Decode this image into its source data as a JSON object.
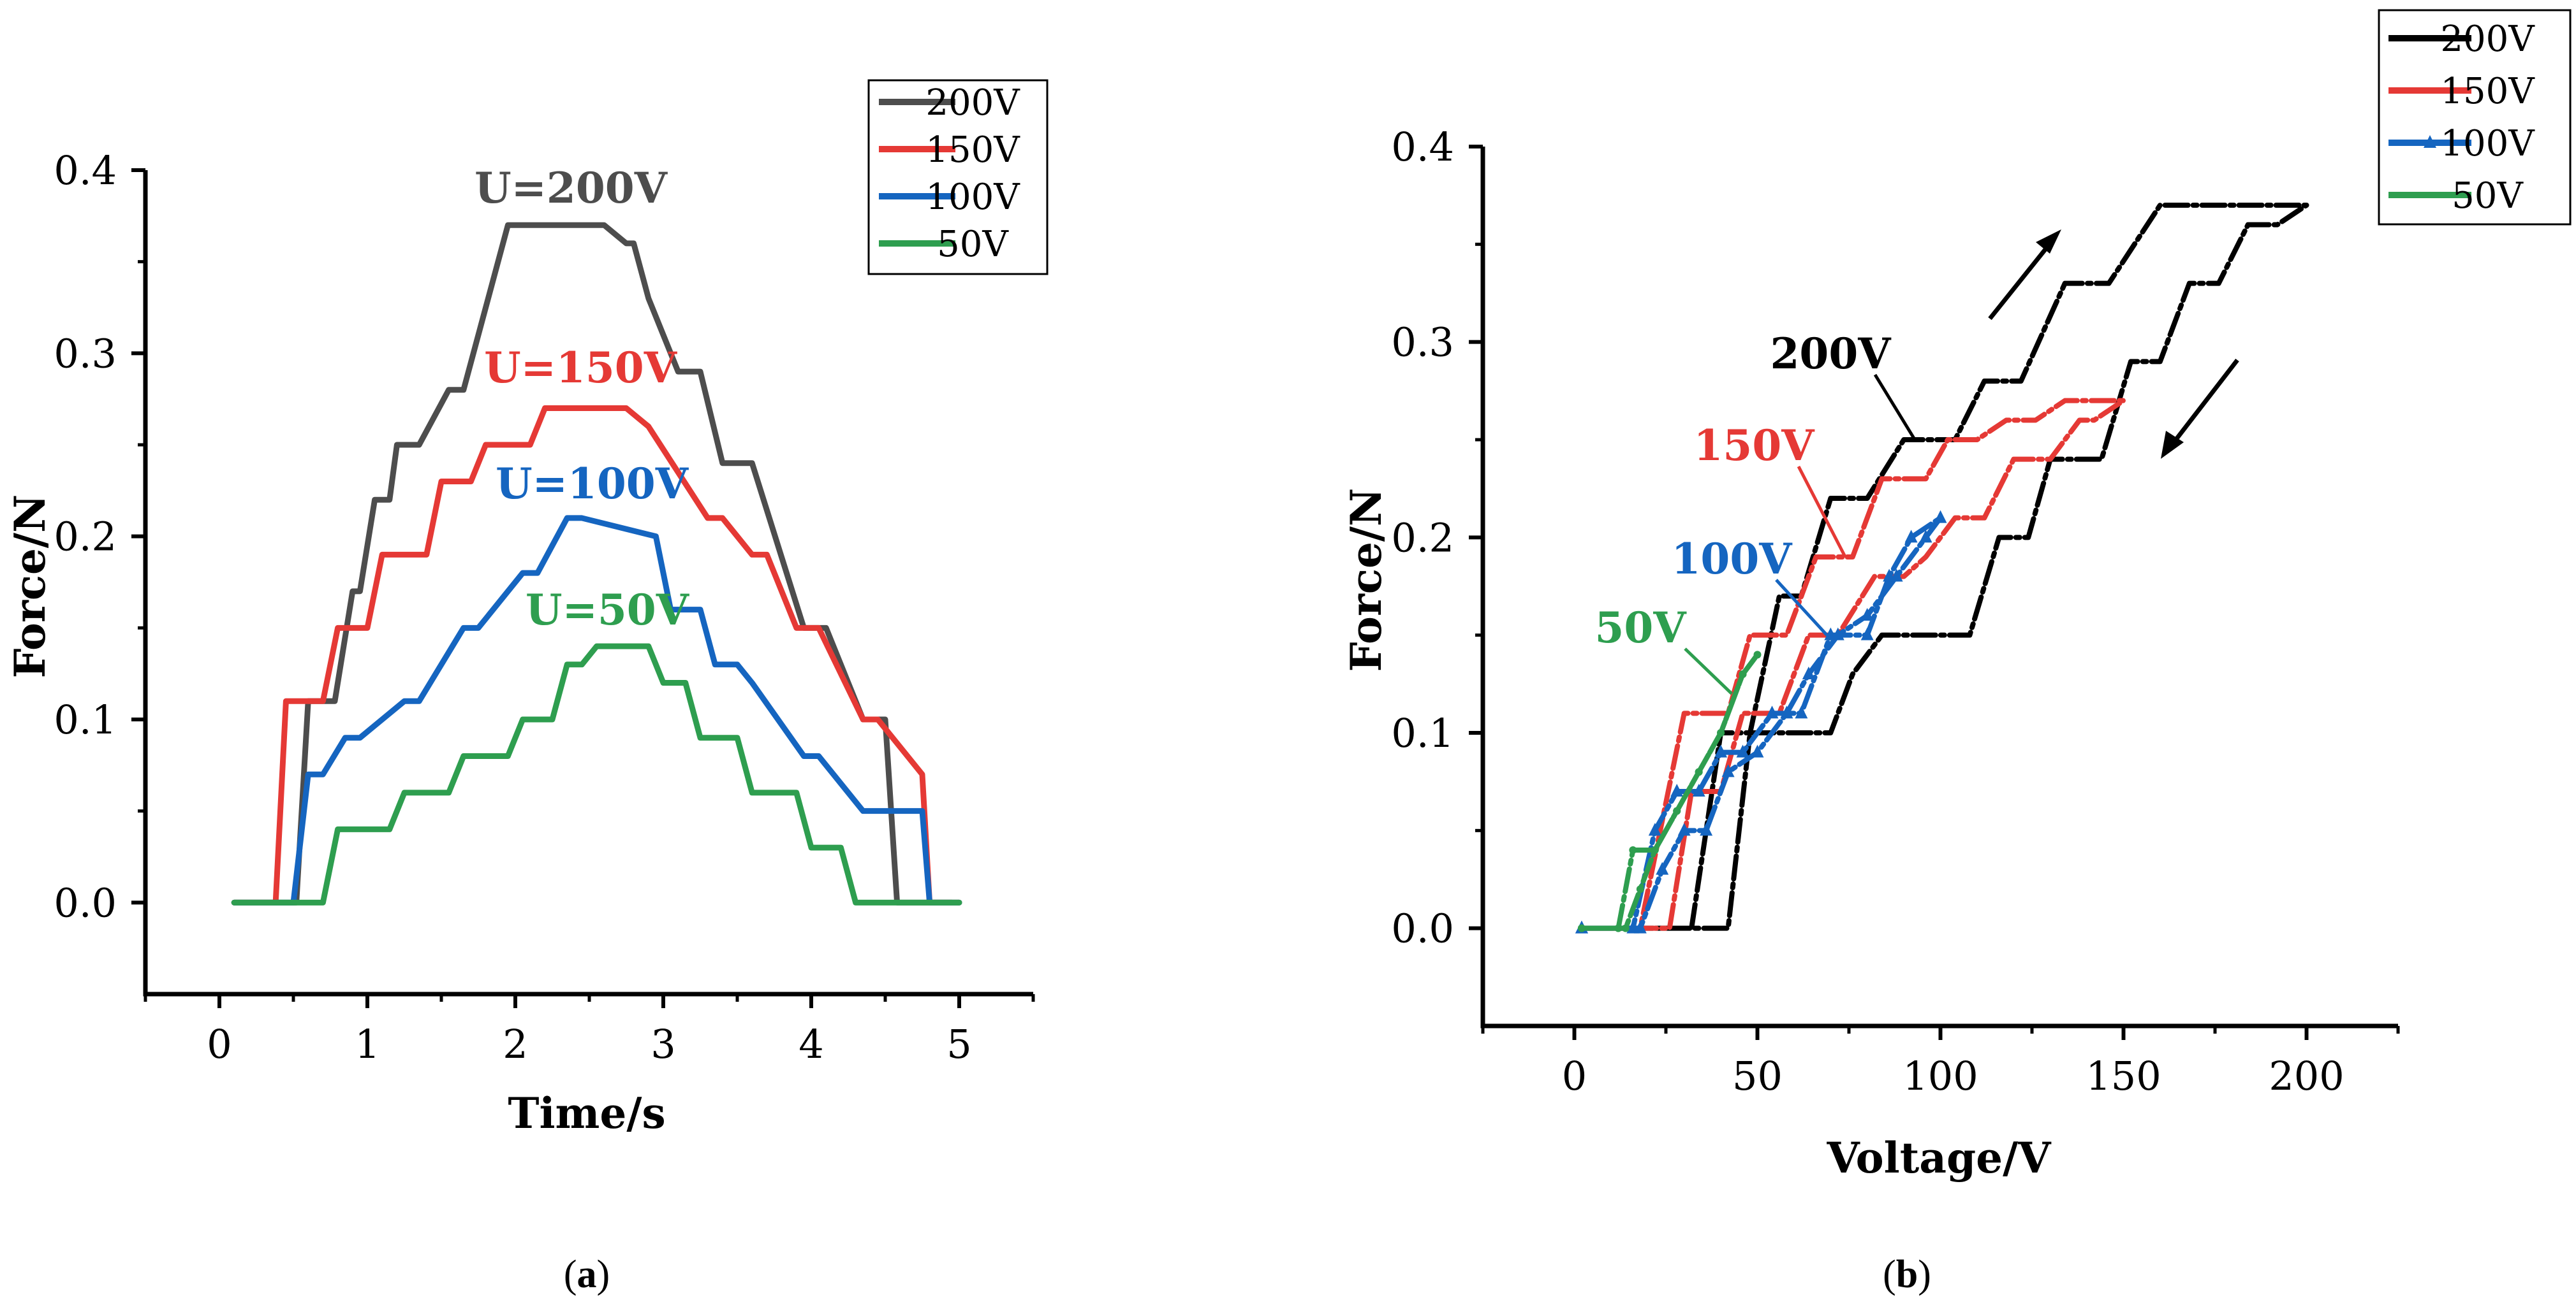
{
  "figure": {
    "caption_a_letter": "a",
    "caption_b_letter": "b"
  },
  "chart_data": [
    {
      "panel": "a",
      "type": "line",
      "step": true,
      "title": "",
      "xlabel": "Time/s",
      "ylabel": "Force/N",
      "xlim": [
        -0.5,
        5.5
      ],
      "ylim": [
        -0.05,
        0.4
      ],
      "xticks": [
        0,
        1,
        2,
        3,
        4,
        5
      ],
      "yticks": [
        0.0,
        0.1,
        0.2,
        0.3,
        0.4
      ],
      "xtick_labels": [
        "0",
        "1",
        "2",
        "3",
        "4",
        "5"
      ],
      "ytick_labels": [
        "0.0",
        "0.1",
        "0.2",
        "0.3",
        "0.4"
      ],
      "grid": false,
      "legend": {
        "placement": "top-right",
        "entries": [
          "200V",
          "150V",
          "100V",
          "50V"
        ]
      },
      "annotations": [
        {
          "text": "U=200V",
          "series": "200V",
          "x": 2.4,
          "y": 0.385
        },
        {
          "text": "U=150V",
          "series": "150V",
          "x": 2.45,
          "y": 0.285
        },
        {
          "text": "U=100V",
          "series": "100V",
          "x": 2.55,
          "y": 0.225
        },
        {
          "text": "U=50V",
          "series": "50V",
          "x": 2.65,
          "y": 0.155
        }
      ],
      "series": [
        {
          "name": "200V",
          "color": "#4d4d4d",
          "x": [
            0.1,
            0.48,
            0.52,
            0.6,
            0.78,
            0.9,
            0.95,
            1.05,
            1.15,
            1.2,
            1.35,
            1.55,
            1.65,
            1.95,
            2.05,
            2.55,
            2.6,
            2.75,
            2.8,
            2.9,
            3.1,
            3.25,
            3.4,
            3.6,
            3.95,
            4.1,
            4.35,
            4.5,
            4.58,
            4.6,
            4.95
          ],
          "y": [
            0.0,
            0.0,
            0.0,
            0.11,
            0.11,
            0.17,
            0.17,
            0.22,
            0.22,
            0.25,
            0.25,
            0.28,
            0.28,
            0.37,
            0.37,
            0.37,
            0.37,
            0.36,
            0.36,
            0.33,
            0.29,
            0.29,
            0.24,
            0.24,
            0.15,
            0.15,
            0.1,
            0.1,
            0.0,
            0.0,
            0.0
          ]
        },
        {
          "name": "150V",
          "color": "#e53935",
          "x": [
            0.1,
            0.38,
            0.45,
            0.7,
            0.8,
            1.0,
            1.1,
            1.4,
            1.5,
            1.7,
            1.8,
            2.1,
            2.2,
            2.75,
            2.9,
            3.3,
            3.4,
            3.6,
            3.7,
            3.9,
            4.05,
            4.35,
            4.45,
            4.75,
            4.8,
            5.0
          ],
          "y": [
            0.0,
            0.0,
            0.11,
            0.11,
            0.15,
            0.15,
            0.19,
            0.19,
            0.23,
            0.23,
            0.25,
            0.25,
            0.27,
            0.27,
            0.26,
            0.21,
            0.21,
            0.19,
            0.19,
            0.15,
            0.15,
            0.1,
            0.1,
            0.07,
            0.0,
            0.0
          ]
        },
        {
          "name": "100V",
          "color": "#1565c0",
          "x": [
            0.1,
            0.45,
            0.5,
            0.6,
            0.7,
            0.85,
            0.95,
            1.25,
            1.35,
            1.65,
            1.75,
            2.05,
            2.15,
            2.35,
            2.45,
            2.95,
            3.05,
            3.25,
            3.35,
            3.5,
            3.6,
            3.95,
            4.05,
            4.35,
            4.45,
            4.75,
            4.8,
            5.0
          ],
          "y": [
            0.0,
            0.0,
            0.0,
            0.07,
            0.07,
            0.09,
            0.09,
            0.11,
            0.11,
            0.15,
            0.15,
            0.18,
            0.18,
            0.21,
            0.21,
            0.2,
            0.16,
            0.16,
            0.13,
            0.13,
            0.12,
            0.08,
            0.08,
            0.05,
            0.05,
            0.05,
            0.0,
            0.0
          ]
        },
        {
          "name": "50V",
          "color": "#2e9e4f",
          "x": [
            0.1,
            0.55,
            0.6,
            0.7,
            0.8,
            1.15,
            1.25,
            1.55,
            1.65,
            1.95,
            2.05,
            2.25,
            2.35,
            2.45,
            2.55,
            2.9,
            3.0,
            3.15,
            3.25,
            3.5,
            3.6,
            3.9,
            4.0,
            4.2,
            4.3,
            4.6,
            5.0
          ],
          "y": [
            0.0,
            0.0,
            0.0,
            0.0,
            0.04,
            0.04,
            0.06,
            0.06,
            0.08,
            0.08,
            0.1,
            0.1,
            0.13,
            0.13,
            0.14,
            0.14,
            0.12,
            0.12,
            0.09,
            0.09,
            0.06,
            0.06,
            0.03,
            0.03,
            0.0,
            0.0,
            0.0
          ]
        }
      ]
    },
    {
      "panel": "b",
      "type": "line",
      "step": true,
      "title": "",
      "xlabel": "Voltage/V",
      "ylabel": "Force/N",
      "xlim": [
        -25,
        225
      ],
      "ylim": [
        -0.05,
        0.4
      ],
      "xticks": [
        0,
        50,
        100,
        150,
        200
      ],
      "yticks": [
        0.0,
        0.1,
        0.2,
        0.3,
        0.4
      ],
      "xtick_labels": [
        "0",
        "50",
        "100",
        "150",
        "200"
      ],
      "ytick_labels": [
        "0.0",
        "0.1",
        "0.2",
        "0.3",
        "0.4"
      ],
      "grid": false,
      "legend": {
        "placement": "top-right",
        "entries": [
          "200V",
          "150V",
          "100V",
          "50V"
        ]
      },
      "annotations": [
        {
          "text": "200V",
          "series": "200V",
          "x": 57,
          "y": 0.29,
          "arrow_to": [
            93,
            0.25
          ]
        },
        {
          "text": "150V",
          "series": "150V",
          "x": 42,
          "y": 0.24,
          "arrow_to": [
            74,
            0.19
          ]
        },
        {
          "text": "100V",
          "series": "100V",
          "x": 40,
          "y": 0.18,
          "arrow_to": [
            69,
            0.15
          ]
        },
        {
          "text": "50V",
          "series": "50V",
          "x": 30,
          "y": 0.15,
          "arrow_to": [
            43,
            0.12
          ]
        }
      ],
      "series": [
        {
          "name": "200V",
          "color": "#000000",
          "x": [
            2,
            32,
            40,
            48,
            56,
            62,
            70,
            80,
            90,
            104,
            112,
            122,
            134,
            146,
            160,
            172,
            200,
            192,
            184,
            176,
            168,
            160,
            152,
            144,
            136,
            130,
            124,
            116,
            108,
            100,
            92,
            84,
            76,
            70,
            64,
            56,
            48,
            42,
            40,
            20,
            2
          ],
          "y": [
            0.0,
            0.0,
            0.1,
            0.1,
            0.17,
            0.17,
            0.22,
            0.22,
            0.25,
            0.25,
            0.28,
            0.28,
            0.33,
            0.33,
            0.37,
            0.37,
            0.37,
            0.36,
            0.36,
            0.33,
            0.33,
            0.29,
            0.29,
            0.24,
            0.24,
            0.24,
            0.2,
            0.2,
            0.15,
            0.15,
            0.15,
            0.15,
            0.13,
            0.1,
            0.1,
            0.1,
            0.1,
            0.0,
            0.0,
            0.0,
            0.0
          ]
        },
        {
          "name": "150V",
          "color": "#e53935",
          "x": [
            2,
            18,
            30,
            42,
            48,
            58,
            66,
            76,
            84,
            96,
            102,
            110,
            118,
            126,
            134,
            142,
            150,
            142,
            138,
            130,
            120,
            112,
            104,
            96,
            90,
            82,
            72,
            64,
            56,
            46,
            40,
            32,
            26,
            20,
            2
          ],
          "y": [
            0.0,
            0.0,
            0.11,
            0.11,
            0.15,
            0.15,
            0.19,
            0.19,
            0.23,
            0.23,
            0.25,
            0.25,
            0.26,
            0.26,
            0.27,
            0.27,
            0.27,
            0.26,
            0.26,
            0.24,
            0.24,
            0.21,
            0.21,
            0.19,
            0.18,
            0.18,
            0.15,
            0.15,
            0.11,
            0.11,
            0.07,
            0.07,
            0.0,
            0.0,
            0.0
          ]
        },
        {
          "name": "100V",
          "color": "#1565c0",
          "x": [
            2,
            16,
            22,
            28,
            34,
            40,
            46,
            54,
            62,
            70,
            80,
            86,
            92,
            100,
            96,
            88,
            80,
            72,
            64,
            58,
            50,
            42,
            36,
            30,
            24,
            18,
            2
          ],
          "y": [
            0.0,
            0.0,
            0.05,
            0.07,
            0.07,
            0.09,
            0.09,
            0.11,
            0.11,
            0.15,
            0.15,
            0.18,
            0.2,
            0.21,
            0.2,
            0.18,
            0.16,
            0.15,
            0.13,
            0.11,
            0.09,
            0.08,
            0.05,
            0.05,
            0.03,
            0.0,
            0.0
          ]
        },
        {
          "name": "50V",
          "color": "#2e9e4f",
          "x": [
            2,
            12,
            16,
            22,
            28,
            34,
            40,
            46,
            50,
            46,
            40,
            34,
            28,
            22,
            18,
            14,
            2
          ],
          "y": [
            0.0,
            0.0,
            0.04,
            0.04,
            0.06,
            0.08,
            0.1,
            0.13,
            0.14,
            0.13,
            0.1,
            0.08,
            0.06,
            0.04,
            0.02,
            0.0,
            0.0
          ]
        }
      ]
    }
  ]
}
